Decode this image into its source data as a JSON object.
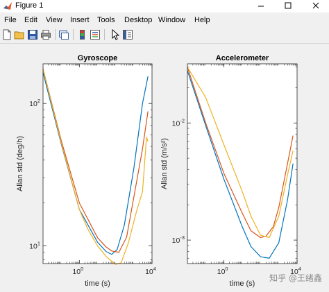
{
  "window": {
    "title": "Figure 1",
    "minimize_icon": "minimize-icon",
    "maximize_icon": "maximize-icon",
    "close_icon": "close-icon"
  },
  "menu": [
    "File",
    "Edit",
    "View",
    "Insert",
    "Tools",
    "Desktop",
    "Window",
    "Help"
  ],
  "toolbar": {
    "icons": [
      "new-figure-icon",
      "open-file-icon",
      "save-icon",
      "print-icon",
      "link-plot-icon",
      "insert-colorbar-icon",
      "insert-legend-icon",
      "edit-plot-icon",
      "property-inspector-icon"
    ]
  },
  "watermark": "知乎 @王绪鑫",
  "chart_data": [
    {
      "type": "line",
      "title": "Gyroscope",
      "xlabel": "time (s)",
      "ylabel": "Allan std (deg/h)",
      "xscale": "log",
      "yscale": "log",
      "xlim": [
        0.01,
        10000
      ],
      "ylim": [
        7.5,
        190
      ],
      "xticks": [
        {
          "value": 1,
          "base": "10",
          "exp": "0"
        },
        {
          "value": 10000,
          "base": "10",
          "exp": "4"
        }
      ],
      "yticks": [
        {
          "value": 10,
          "base": "10",
          "exp": "1"
        },
        {
          "value": 100,
          "base": "10",
          "exp": "2"
        }
      ],
      "series": [
        {
          "color": "#0072bd",
          "x": [
            0.01,
            0.1,
            1,
            10,
            30,
            60,
            120,
            300,
            1000,
            3000,
            6000
          ],
          "y": [
            165,
            52,
            18,
            10.6,
            9.1,
            8.7,
            9.4,
            14,
            35,
            100,
            155
          ]
        },
        {
          "color": "#d95319",
          "x": [
            0.01,
            0.1,
            1,
            10,
            30,
            60,
            150,
            400,
            1000,
            3000,
            6000
          ],
          "y": [
            175,
            55,
            20,
            11.4,
            9.8,
            9.2,
            9.0,
            11.5,
            22,
            48,
            88
          ]
        },
        {
          "color": "#edb120",
          "x": [
            0.01,
            0.1,
            1,
            3,
            10,
            30,
            60,
            100,
            200,
            500,
            1500,
            3000,
            5000,
            6000
          ],
          "y": [
            175,
            53,
            18,
            13,
            10.0,
            8.4,
            7.8,
            7.4,
            7.6,
            10.5,
            18,
            24,
            58,
            54
          ]
        }
      ]
    },
    {
      "type": "line",
      "title": "Accelerometer",
      "xlabel": "time (s)",
      "ylabel": "Allan std (m/s²)",
      "xscale": "log",
      "yscale": "log",
      "xlim": [
        0.01,
        10000
      ],
      "ylim": [
        0.00063,
        0.032
      ],
      "xticks": [
        {
          "value": 1,
          "base": "10",
          "exp": "0"
        },
        {
          "value": 10000,
          "base": "10",
          "exp": "4"
        }
      ],
      "yticks": [
        {
          "value": 0.001,
          "base": "10",
          "exp": "-3"
        },
        {
          "value": 0.01,
          "base": "10",
          "exp": "-2"
        }
      ],
      "series": [
        {
          "color": "#0072bd",
          "x": [
            0.01,
            0.1,
            1,
            10,
            30,
            100,
            300,
            1000,
            3000,
            6000
          ],
          "y": [
            0.028,
            0.0095,
            0.0033,
            0.0013,
            0.00088,
            0.00072,
            0.0007,
            0.00095,
            0.0022,
            0.0045
          ]
        },
        {
          "color": "#d95319",
          "x": [
            0.01,
            0.1,
            1,
            10,
            30,
            100,
            200,
            500,
            1000,
            3000,
            6000
          ],
          "y": [
            0.03,
            0.01,
            0.0037,
            0.0017,
            0.0012,
            0.00105,
            0.00108,
            0.0013,
            0.0019,
            0.0045,
            0.0078
          ]
        },
        {
          "color": "#edb120",
          "x": [
            0.01,
            0.1,
            1,
            10,
            30,
            100,
            300,
            1000,
            3000,
            6000
          ],
          "y": [
            0.03,
            0.0165,
            0.0065,
            0.0026,
            0.0016,
            0.0011,
            0.00105,
            0.0016,
            0.0036,
            0.0058
          ]
        }
      ]
    }
  ]
}
